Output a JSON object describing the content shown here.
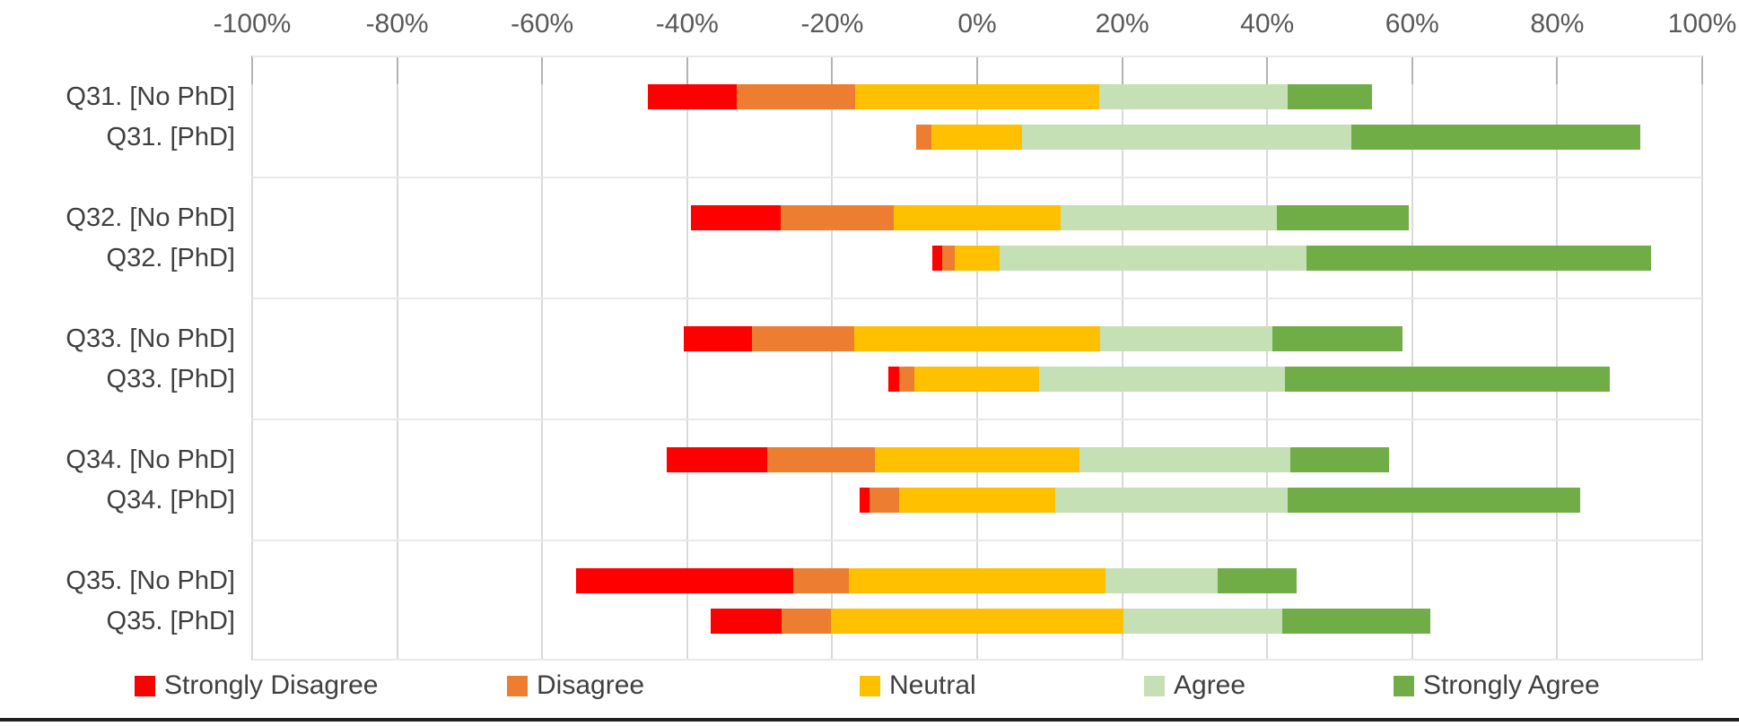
{
  "chart_data": {
    "type": "bar",
    "subtype": "diverging-stacked-likert",
    "title": "",
    "xlabel": "",
    "ylabel": "",
    "xlim": [
      -100,
      100
    ],
    "x_tick_labels": [
      "-100%",
      "-80%",
      "-60%",
      "-40%",
      "-20%",
      "0%",
      "20%",
      "40%",
      "60%",
      "80%",
      "100%"
    ],
    "x_tick_values": [
      -100,
      -80,
      -60,
      -40,
      -20,
      0,
      20,
      40,
      60,
      80,
      100
    ],
    "grid": "on",
    "legend_position": "bottom",
    "neutral_centered_on_zero": true,
    "series_order": [
      "strongly_disagree",
      "disagree",
      "neutral",
      "agree",
      "strongly_agree"
    ],
    "legend": [
      {
        "key": "strongly_disagree",
        "label": "Strongly Disagree",
        "color": "#fe0000"
      },
      {
        "key": "disagree",
        "label": "Disagree",
        "color": "#ed7d31"
      },
      {
        "key": "neutral",
        "label": "Neutral",
        "color": "#ffc000"
      },
      {
        "key": "agree",
        "label": "Agree",
        "color": "#c5e0b4"
      },
      {
        "key": "strongly_agree",
        "label": "Strongly Agree",
        "color": "#70ad47"
      }
    ],
    "rows": [
      {
        "label": "Q31. [No PhD]",
        "group": "Q31",
        "values": {
          "strongly_disagree": 12.2,
          "disagree": 16.4,
          "neutral": 33.6,
          "agree": 26.0,
          "strongly_agree": 11.7
        }
      },
      {
        "label": "Q31. [PhD]",
        "group": "Q31",
        "values": {
          "strongly_disagree": 0.0,
          "disagree": 2.2,
          "neutral": 12.5,
          "agree": 45.4,
          "strongly_agree": 39.8
        }
      },
      {
        "label": "Q32. [No PhD]",
        "group": "Q32",
        "values": {
          "strongly_disagree": 12.4,
          "disagree": 15.6,
          "neutral": 23.0,
          "agree": 29.8,
          "strongly_agree": 18.2
        }
      },
      {
        "label": "Q32. [PhD]",
        "group": "Q32",
        "values": {
          "strongly_disagree": 1.4,
          "disagree": 1.7,
          "neutral": 6.2,
          "agree": 42.3,
          "strongly_agree": 47.5
        }
      },
      {
        "label": "Q33. [No PhD]",
        "group": "Q33",
        "values": {
          "strongly_disagree": 9.4,
          "disagree": 14.1,
          "neutral": 33.9,
          "agree": 23.8,
          "strongly_agree": 17.9
        }
      },
      {
        "label": "Q33. [PhD]",
        "group": "Q33",
        "values": {
          "strongly_disagree": 1.5,
          "disagree": 2.2,
          "neutral": 17.2,
          "agree": 33.9,
          "strongly_agree": 44.8
        }
      },
      {
        "label": "Q34. [No PhD]",
        "group": "Q34",
        "values": {
          "strongly_disagree": 13.9,
          "disagree": 14.8,
          "neutral": 28.3,
          "agree": 29.1,
          "strongly_agree": 13.6
        }
      },
      {
        "label": "Q34. [PhD]",
        "group": "Q34",
        "values": {
          "strongly_disagree": 1.4,
          "disagree": 4.0,
          "neutral": 21.6,
          "agree": 32.0,
          "strongly_agree": 40.4
        }
      },
      {
        "label": "Q35. [No PhD]",
        "group": "Q35",
        "values": {
          "strongly_disagree": 30.0,
          "disagree": 7.7,
          "neutral": 35.3,
          "agree": 15.5,
          "strongly_agree": 10.9
        }
      },
      {
        "label": "Q35. [PhD]",
        "group": "Q35",
        "values": {
          "strongly_disagree": 9.8,
          "disagree": 6.8,
          "neutral": 40.4,
          "agree": 21.9,
          "strongly_agree": 20.4
        }
      }
    ],
    "colors": {
      "gridline": "#d9d9d9",
      "tick": "#b3b3b3",
      "group_separator": "#e9e9e9",
      "axis_text": "#595959",
      "label_text": "#3f3f3f",
      "bottom_rule": "#1f1f1f"
    }
  }
}
